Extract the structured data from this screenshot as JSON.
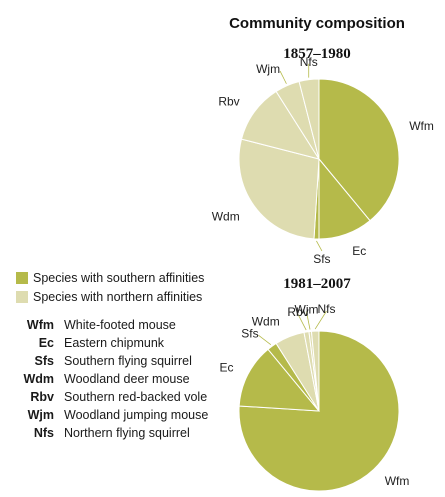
{
  "colors": {
    "southern": "#b5ba4a",
    "northern": "#dedcb0",
    "stroke": "#ffffff",
    "leader": "#b5ba4a"
  },
  "header": {
    "title": "Community composition"
  },
  "legend": {
    "items": [
      {
        "label": "Species with southern affinities",
        "group": "southern"
      },
      {
        "label": "Species with northern affinities",
        "group": "northern"
      }
    ]
  },
  "abbreviations": [
    {
      "code": "Wfm",
      "name": "White-footed mouse"
    },
    {
      "code": "Ec",
      "name": "Eastern chipmunk"
    },
    {
      "code": "Sfs",
      "name": "Southern flying squirrel"
    },
    {
      "code": "Wdm",
      "name": "Woodland deer mouse"
    },
    {
      "code": "Rbv",
      "name": "Southern red-backed vole"
    },
    {
      "code": "Wjm",
      "name": "Woodland jumping mouse"
    },
    {
      "code": "Nfs",
      "name": "Northern flying squirrel"
    }
  ],
  "chart_data": [
    {
      "type": "pie",
      "title": "1857–1980",
      "slices": [
        {
          "label": "Wfm",
          "value": 39,
          "group": "southern"
        },
        {
          "label": "Ec",
          "value": 11,
          "group": "southern"
        },
        {
          "label": "Sfs",
          "value": 1,
          "group": "southern"
        },
        {
          "label": "Wdm",
          "value": 28,
          "group": "northern"
        },
        {
          "label": "Rbv",
          "value": 12,
          "group": "northern"
        },
        {
          "label": "Wjm",
          "value": 5,
          "group": "northern"
        },
        {
          "label": "Nfs",
          "value": 4,
          "group": "northern"
        }
      ]
    },
    {
      "type": "pie",
      "title": "1981–2007",
      "slices": [
        {
          "label": "Wfm",
          "value": 76,
          "group": "southern"
        },
        {
          "label": "Ec",
          "value": 13,
          "group": "southern"
        },
        {
          "label": "Sfs",
          "value": 2,
          "group": "southern"
        },
        {
          "label": "Wdm",
          "value": 6,
          "group": "northern"
        },
        {
          "label": "Rbv",
          "value": 1,
          "group": "northern"
        },
        {
          "label": "Wjm",
          "value": 0.5,
          "group": "northern"
        },
        {
          "label": "Nfs",
          "value": 1.5,
          "group": "northern"
        }
      ]
    }
  ]
}
